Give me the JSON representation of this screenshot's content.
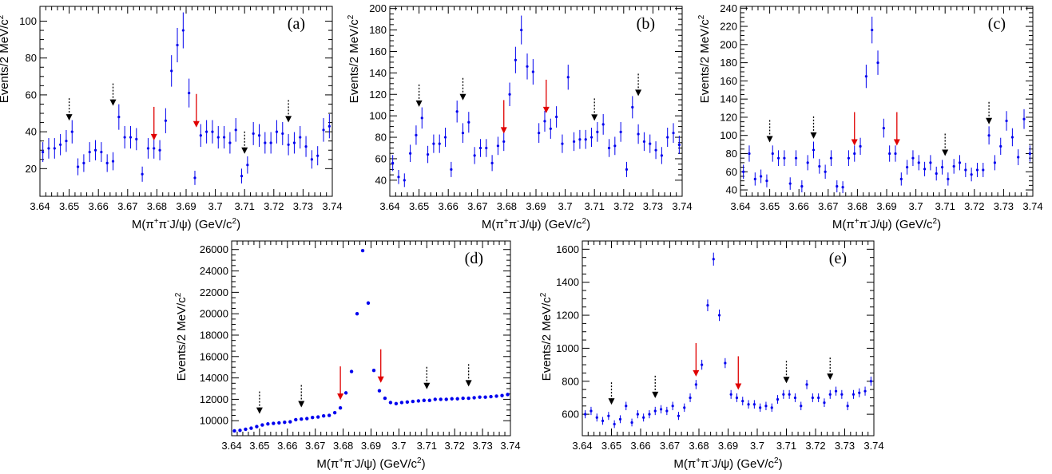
{
  "chart_data": [
    {
      "type": "scatter",
      "panel_label": "(a)",
      "xlabel": "M(π⁺π⁻J/ψ) (GeV/c²)",
      "ylabel": "Events/2 MeV/c²",
      "xlim": [
        3.64,
        3.74
      ],
      "ylim": [
        5,
        108
      ],
      "x_ticks": [
        "3.64",
        "3.65",
        "3.66",
        "3.67",
        "3.68",
        "3.69",
        "3.7",
        "3.71",
        "3.72",
        "3.73",
        "3.74"
      ],
      "y_ticks": [
        20,
        40,
        60,
        80,
        100
      ],
      "error_bars": true,
      "marker_color": "#0000ee",
      "x": [
        3.641,
        3.643,
        3.645,
        3.647,
        3.649,
        3.651,
        3.653,
        3.655,
        3.657,
        3.659,
        3.661,
        3.663,
        3.665,
        3.667,
        3.669,
        3.671,
        3.673,
        3.675,
        3.677,
        3.679,
        3.681,
        3.683,
        3.685,
        3.687,
        3.689,
        3.691,
        3.693,
        3.695,
        3.697,
        3.699,
        3.701,
        3.703,
        3.705,
        3.707,
        3.709,
        3.711,
        3.713,
        3.715,
        3.717,
        3.719,
        3.721,
        3.723,
        3.725,
        3.727,
        3.729,
        3.731,
        3.733,
        3.735,
        3.737,
        3.739
      ],
      "y": [
        29,
        31,
        31,
        33,
        35,
        40,
        21,
        23,
        29,
        30,
        29,
        23,
        24,
        48,
        37,
        37,
        36,
        17,
        31,
        31,
        30,
        46,
        73,
        87,
        95,
        61,
        15,
        38,
        40,
        40,
        37,
        37,
        34,
        41,
        16,
        22,
        39,
        38,
        34,
        34,
        40,
        39,
        33,
        34,
        37,
        32,
        25,
        27,
        41,
        43
      ],
      "signal_arrows_x": [
        3.679,
        3.6935
      ],
      "sideband_arrows_x": [
        3.65,
        3.665,
        3.71,
        3.725
      ],
      "arrow_colors": {
        "signal": "#e00000",
        "sideband": "#000000"
      }
    },
    {
      "type": "scatter",
      "panel_label": "(b)",
      "xlabel": "M(π⁺π⁻J/ψ) (GeV/c²)",
      "ylabel": "Events/2 MeV/c²",
      "xlim": [
        3.64,
        3.74
      ],
      "ylim": [
        25,
        202
      ],
      "x_ticks": [
        "3.64",
        "3.65",
        "3.66",
        "3.67",
        "3.68",
        "3.69",
        "3.7",
        "3.71",
        "3.72",
        "3.73",
        "3.74"
      ],
      "y_ticks": [
        40,
        60,
        80,
        100,
        120,
        140,
        160,
        180,
        200
      ],
      "error_bars": true,
      "marker_color": "#0000ee",
      "x": [
        3.641,
        3.643,
        3.645,
        3.647,
        3.649,
        3.651,
        3.653,
        3.655,
        3.657,
        3.659,
        3.661,
        3.663,
        3.665,
        3.667,
        3.669,
        3.671,
        3.673,
        3.675,
        3.677,
        3.679,
        3.681,
        3.683,
        3.685,
        3.687,
        3.689,
        3.691,
        3.693,
        3.695,
        3.697,
        3.699,
        3.701,
        3.703,
        3.705,
        3.707,
        3.709,
        3.711,
        3.713,
        3.715,
        3.717,
        3.719,
        3.721,
        3.723,
        3.725,
        3.727,
        3.729,
        3.731,
        3.733,
        3.735,
        3.737,
        3.739
      ],
      "y": [
        56,
        43,
        40,
        65,
        82,
        98,
        64,
        74,
        74,
        80,
        50,
        104,
        84,
        94,
        63,
        70,
        70,
        56,
        72,
        76,
        120,
        152,
        180,
        146,
        141,
        84,
        95,
        88,
        99,
        74,
        136,
        76,
        78,
        78,
        80,
        85,
        92,
        70,
        72,
        85,
        50,
        108,
        83,
        76,
        74,
        68,
        63,
        80,
        84,
        73
      ],
      "signal_arrows_x": [
        3.679,
        3.6935
      ],
      "sideband_arrows_x": [
        3.65,
        3.665,
        3.71,
        3.725
      ],
      "arrow_colors": {
        "signal": "#e00000",
        "sideband": "#000000"
      }
    },
    {
      "type": "scatter",
      "panel_label": "(c)",
      "xlabel": "M(π⁺π⁻J/ψ) (GeV/c²)",
      "ylabel": "Events/2 MeV/c²",
      "xlim": [
        3.64,
        3.74
      ],
      "ylim": [
        33,
        242
      ],
      "x_ticks": [
        "3.64",
        "3.65",
        "3.66",
        "3.67",
        "3.68",
        "3.69",
        "3.7",
        "3.71",
        "3.72",
        "3.73",
        "3.74"
      ],
      "y_ticks": [
        40,
        60,
        80,
        100,
        120,
        140,
        160,
        180,
        200,
        220,
        240
      ],
      "error_bars": true,
      "marker_color": "#0000ee",
      "x": [
        3.641,
        3.643,
        3.645,
        3.647,
        3.649,
        3.651,
        3.653,
        3.655,
        3.657,
        3.659,
        3.661,
        3.663,
        3.665,
        3.667,
        3.669,
        3.671,
        3.673,
        3.675,
        3.677,
        3.679,
        3.681,
        3.683,
        3.685,
        3.687,
        3.689,
        3.691,
        3.693,
        3.695,
        3.697,
        3.699,
        3.701,
        3.703,
        3.705,
        3.707,
        3.709,
        3.711,
        3.713,
        3.715,
        3.717,
        3.719,
        3.721,
        3.723,
        3.725,
        3.727,
        3.729,
        3.731,
        3.733,
        3.735,
        3.737,
        3.739
      ],
      "y": [
        60,
        80,
        52,
        55,
        50,
        80,
        75,
        75,
        47,
        75,
        44,
        70,
        84,
        66,
        60,
        75,
        44,
        43,
        75,
        80,
        88,
        165,
        216,
        180,
        108,
        80,
        80,
        52,
        65,
        75,
        70,
        63,
        70,
        58,
        65,
        52,
        66,
        70,
        62,
        57,
        62,
        62,
        100,
        70,
        88,
        116,
        98,
        76,
        118,
        80
      ],
      "signal_arrows_x": [
        3.679,
        3.6935
      ],
      "sideband_arrows_x": [
        3.65,
        3.665,
        3.71,
        3.725
      ],
      "arrow_colors": {
        "signal": "#e00000",
        "sideband": "#000000"
      }
    },
    {
      "type": "scatter",
      "panel_label": "(d)",
      "xlabel": "M(π⁺π⁻J/ψ) (GeV/c²)",
      "ylabel": "Events/2 MeV/c²",
      "xlim": [
        3.64,
        3.74
      ],
      "ylim": [
        8600,
        26800
      ],
      "x_ticks": [
        "3.64",
        "3.65",
        "3.66",
        "3.67",
        "3.68",
        "3.69",
        "3.7",
        "3.71",
        "3.72",
        "3.73",
        "3.74"
      ],
      "y_ticks": [
        10000,
        12000,
        14000,
        16000,
        18000,
        20000,
        22000,
        24000,
        26000
      ],
      "error_bars": false,
      "marker_color": "#0000ee",
      "x": [
        3.641,
        3.643,
        3.645,
        3.647,
        3.649,
        3.651,
        3.653,
        3.655,
        3.657,
        3.659,
        3.661,
        3.663,
        3.665,
        3.667,
        3.669,
        3.671,
        3.673,
        3.675,
        3.677,
        3.679,
        3.681,
        3.683,
        3.685,
        3.687,
        3.689,
        3.691,
        3.693,
        3.695,
        3.697,
        3.699,
        3.701,
        3.703,
        3.705,
        3.707,
        3.709,
        3.711,
        3.713,
        3.715,
        3.717,
        3.719,
        3.721,
        3.723,
        3.725,
        3.727,
        3.729,
        3.731,
        3.733,
        3.735,
        3.737,
        3.739
      ],
      "y": [
        9050,
        9100,
        9200,
        9300,
        9450,
        9600,
        9700,
        9750,
        9800,
        9850,
        9900,
        10100,
        10150,
        10200,
        10300,
        10350,
        10450,
        10500,
        10750,
        11200,
        12600,
        14600,
        20000,
        25900,
        21000,
        14700,
        12800,
        12100,
        11700,
        11600,
        11700,
        11750,
        11800,
        11850,
        11900,
        11900,
        12000,
        12000,
        12000,
        12050,
        12050,
        12100,
        12100,
        12150,
        12200,
        12200,
        12250,
        12300,
        12350,
        12450
      ],
      "signal_arrows_x": [
        3.679,
        3.6935
      ],
      "sideband_arrows_x": [
        3.65,
        3.665,
        3.71,
        3.725
      ],
      "arrow_colors": {
        "signal": "#e00000",
        "sideband": "#000000"
      }
    },
    {
      "type": "scatter",
      "panel_label": "(e)",
      "xlabel": "M(π⁺π⁻J/ψ) (GeV/c²)",
      "ylabel": "Events/2 MeV/c²",
      "xlim": [
        3.64,
        3.74
      ],
      "ylim": [
        470,
        1650
      ],
      "x_ticks": [
        "3.64",
        "3.65",
        "3.66",
        "3.67",
        "3.68",
        "3.69",
        "3.7",
        "3.71",
        "3.72",
        "3.73",
        "3.74"
      ],
      "y_ticks": [
        600,
        800,
        1000,
        1200,
        1400,
        1600
      ],
      "error_bars": true,
      "marker_color": "#0000ee",
      "x": [
        3.641,
        3.643,
        3.645,
        3.647,
        3.649,
        3.651,
        3.653,
        3.655,
        3.657,
        3.659,
        3.661,
        3.663,
        3.665,
        3.667,
        3.669,
        3.671,
        3.673,
        3.675,
        3.677,
        3.679,
        3.681,
        3.683,
        3.685,
        3.687,
        3.689,
        3.691,
        3.693,
        3.695,
        3.697,
        3.699,
        3.701,
        3.703,
        3.705,
        3.707,
        3.709,
        3.711,
        3.713,
        3.715,
        3.717,
        3.719,
        3.721,
        3.723,
        3.725,
        3.727,
        3.729,
        3.731,
        3.733,
        3.735,
        3.737,
        3.739
      ],
      "y": [
        600,
        620,
        580,
        560,
        590,
        540,
        570,
        650,
        550,
        600,
        580,
        600,
        620,
        630,
        620,
        650,
        590,
        640,
        700,
        780,
        900,
        1260,
        1540,
        1200,
        910,
        720,
        700,
        680,
        660,
        660,
        640,
        650,
        640,
        690,
        720,
        720,
        700,
        650,
        780,
        700,
        700,
        670,
        720,
        740,
        720,
        650,
        720,
        730,
        740,
        800
      ],
      "signal_arrows_x": [
        3.679,
        3.6935
      ],
      "sideband_arrows_x": [
        3.65,
        3.665,
        3.71,
        3.725
      ],
      "arrow_colors": {
        "signal": "#e00000",
        "sideband": "#000000"
      }
    }
  ]
}
